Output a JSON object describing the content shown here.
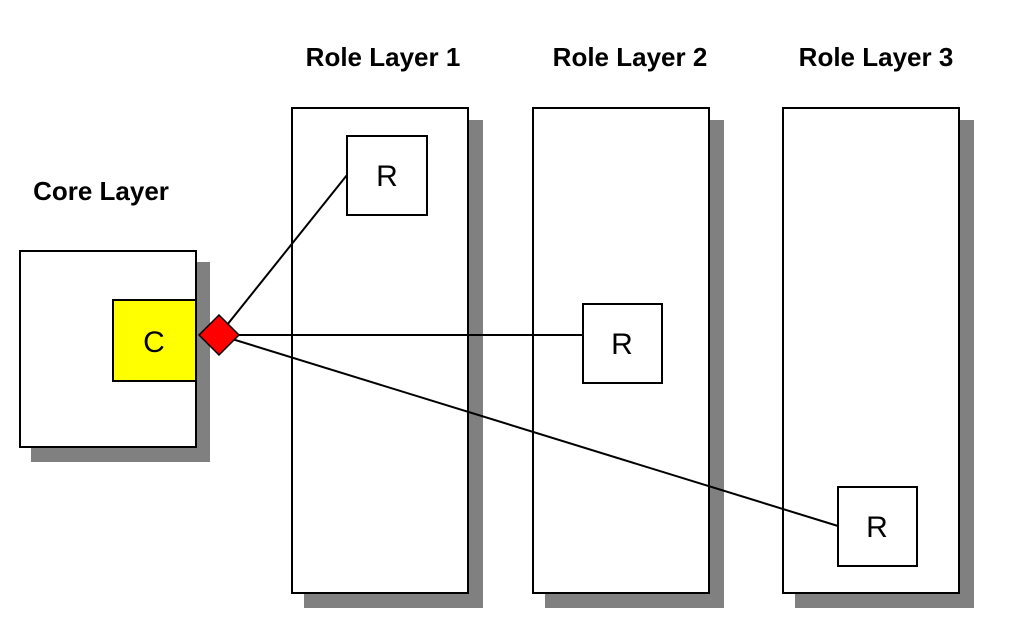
{
  "core_layer": {
    "title": "Core Layer",
    "component_label": "C",
    "component_color": "#ffff00"
  },
  "junction": {
    "shape": "diamond",
    "color": "#ff0000"
  },
  "role_layers": [
    {
      "title": "Role Layer 1",
      "role_label": "R"
    },
    {
      "title": "Role Layer 2",
      "role_label": "R"
    },
    {
      "title": "Role Layer 3",
      "role_label": "R"
    }
  ],
  "colors": {
    "shadow": "#808080",
    "outline": "#000000",
    "background": "#ffffff"
  }
}
